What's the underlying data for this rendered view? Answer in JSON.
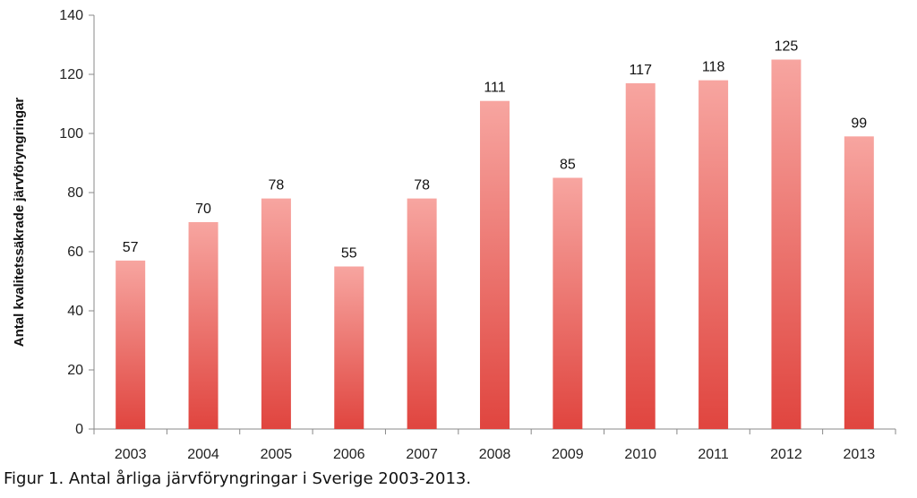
{
  "chart_data": {
    "type": "bar",
    "categories": [
      "2003",
      "2004",
      "2005",
      "2006",
      "2007",
      "2008",
      "2009",
      "2010",
      "2011",
      "2012",
      "2013"
    ],
    "values": [
      57,
      70,
      78,
      55,
      78,
      111,
      85,
      117,
      118,
      125,
      99
    ],
    "data_labels": [
      "57",
      "70",
      "78",
      "55",
      "78",
      "111",
      "85",
      "117",
      "118",
      "125",
      "99"
    ],
    "ylabel": "Antal kvalitetssäkrade järvföryngringar",
    "xlabel": "",
    "ylim": [
      0,
      140
    ],
    "yticks": [
      0,
      20,
      40,
      60,
      80,
      100,
      120,
      140
    ],
    "grid": false,
    "bar_color_top": "#f7a5a0",
    "bar_color_bottom": "#e0453f"
  },
  "caption": "Figur 1. Antal årliga järvföryngringar i Sverige 2003-2013."
}
